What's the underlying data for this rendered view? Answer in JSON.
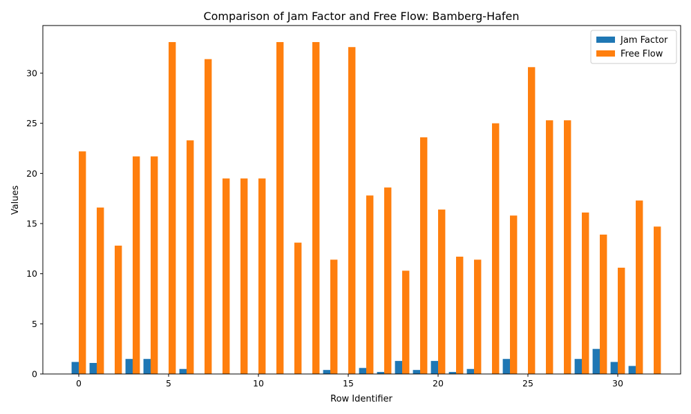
{
  "chart_data": {
    "type": "bar",
    "title": "Comparison of Jam Factor and Free Flow: Bamberg-Hafen",
    "xlabel": "Row Identifier",
    "ylabel": "Values",
    "x": [
      0,
      1,
      2,
      3,
      4,
      5,
      6,
      7,
      8,
      9,
      10,
      11,
      12,
      13,
      14,
      15,
      16,
      17,
      18,
      19,
      20,
      21,
      22,
      23,
      24,
      25,
      26,
      27,
      28,
      29,
      30,
      31,
      32
    ],
    "xlim": [
      -2.0,
      33.5
    ],
    "ylim": [
      0,
      34.75
    ],
    "xticks": [
      0,
      5,
      10,
      15,
      20,
      25,
      30
    ],
    "yticks": [
      0,
      5,
      10,
      15,
      20,
      25,
      30
    ],
    "grid": false,
    "legend_position": "top-right",
    "series": [
      {
        "name": "Jam Factor",
        "color": "#1f77b4",
        "values": [
          1.2,
          1.1,
          0.0,
          1.5,
          1.5,
          0.0,
          0.5,
          0.0,
          0.0,
          0.0,
          0.0,
          0.0,
          0.0,
          0.0,
          0.4,
          0.0,
          0.6,
          0.2,
          1.3,
          0.4,
          1.3,
          0.2,
          0.5,
          0.0,
          1.5,
          0.0,
          0.0,
          0.0,
          1.5,
          2.5,
          1.2,
          0.8,
          0.0
        ]
      },
      {
        "name": "Free Flow",
        "color": "#ff7f0e",
        "values": [
          22.2,
          16.6,
          12.8,
          21.7,
          21.7,
          33.1,
          23.3,
          31.4,
          19.5,
          19.5,
          19.5,
          33.1,
          13.1,
          33.1,
          11.4,
          32.6,
          17.8,
          18.6,
          10.3,
          23.6,
          16.4,
          11.7,
          11.4,
          25.0,
          15.8,
          30.6,
          25.3,
          25.3,
          16.1,
          13.9,
          10.6,
          17.3,
          14.7
        ]
      }
    ]
  }
}
